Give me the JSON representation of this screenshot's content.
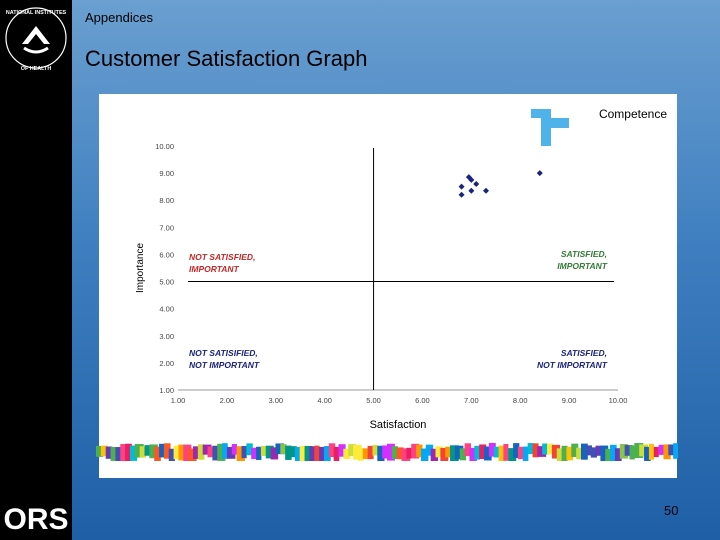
{
  "slide": {
    "section": "Appendices",
    "title": "Customer Satisfaction Graph",
    "page_number": "50",
    "logo_text": "ORS",
    "nih_logo_text": "NATIONAL INSTITUTES OF HEALTH"
  },
  "chart_data": {
    "type": "scatter",
    "xlabel": "Satisfaction",
    "ylabel": "Importance",
    "xlim": [
      1,
      10
    ],
    "ylim": [
      1,
      10
    ],
    "x_ticks": [
      "1.00",
      "2.00",
      "3.00",
      "4.00",
      "5.00",
      "6.00",
      "7.00",
      "8.00",
      "9.00",
      "10.00"
    ],
    "y_ticks": [
      "1.00",
      "2.00",
      "3.00",
      "4.00",
      "5.00",
      "6.00",
      "7.00",
      "8.00",
      "9.00",
      "10.00"
    ],
    "divider_x": 5.0,
    "divider_y": 5.0,
    "points": [
      {
        "x": 6.95,
        "y": 8.85
      },
      {
        "x": 7.0,
        "y": 8.75
      },
      {
        "x": 7.1,
        "y": 8.6
      },
      {
        "x": 6.8,
        "y": 8.5
      },
      {
        "x": 7.0,
        "y": 8.35
      },
      {
        "x": 7.3,
        "y": 8.35
      },
      {
        "x": 6.8,
        "y": 8.2
      },
      {
        "x": 8.4,
        "y": 9.0
      }
    ],
    "point_color": "#1a237e",
    "quadrant_labels": [
      {
        "line1": "NOT SATISFIED,",
        "line2": "IMPORTANT",
        "color": "#c62828",
        "pos": "top-left"
      },
      {
        "line1": "SATISFIED,",
        "line2": "IMPORTANT",
        "color": "#2e7d32",
        "pos": "top-right"
      },
      {
        "line1": "NOT SATISIFIED,",
        "line2": "NOT IMPORTANT",
        "color": "#1a237e",
        "pos": "bottom-left"
      },
      {
        "line1": "SATISFIED,",
        "line2": "NOT IMPORTANT",
        "color": "#1a237e",
        "pos": "bottom-right"
      }
    ],
    "annotation": "Competence",
    "annotation_color": "#4fb3ea"
  }
}
